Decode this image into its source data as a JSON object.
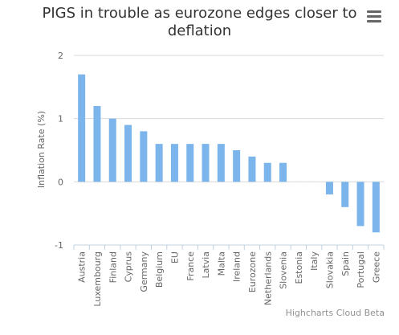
{
  "chart_data": {
    "type": "bar",
    "title": "PIGS in trouble as eurozone edges closer to deflation",
    "ylabel": "Inflation Rate (%)",
    "xlabel": "",
    "ylim": [
      -1,
      2
    ],
    "yticks": [
      -1,
      0,
      1,
      2
    ],
    "grid": true,
    "bar_color": "#7cb5ec",
    "categories": [
      "Austria",
      "Luxembourg",
      "Finland",
      "Cyprus",
      "Germany",
      "Belgium",
      "EU",
      "France",
      "Latvia",
      "Malta",
      "Ireland",
      "Eurozone",
      "Netherlands",
      "Slovenia",
      "Estonia",
      "Italy",
      "Slovakia",
      "Spain",
      "Portugal",
      "Greece"
    ],
    "values": [
      1.7,
      1.2,
      1.0,
      0.9,
      0.8,
      0.6,
      0.6,
      0.6,
      0.6,
      0.6,
      0.5,
      0.4,
      0.3,
      0.3,
      0.0,
      0.0,
      -0.2,
      -0.4,
      -0.7,
      -0.8
    ]
  },
  "credits": "Highcharts Cloud Beta",
  "menu_icon": "hamburger-menu-icon"
}
